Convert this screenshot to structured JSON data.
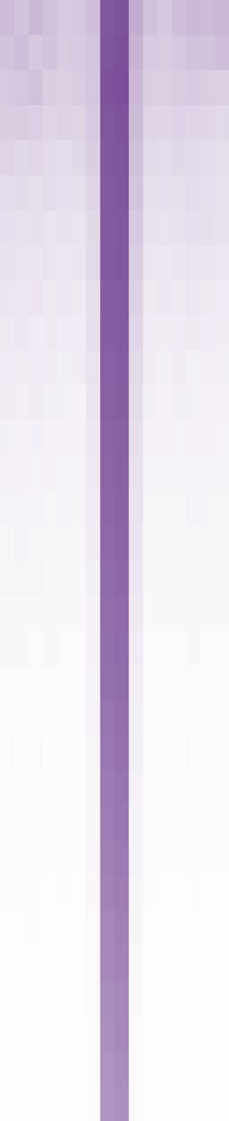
{
  "chart_data": {
    "type": "heatmap",
    "tick_labels": false,
    "color": "#6b3a8c",
    "color_range": [
      0,
      1
    ],
    "cells": [
      [
        0.34,
        0.3,
        0.36,
        0.31,
        0.27,
        0.29,
        0.33,
        0.86,
        0.88,
        0.42,
        0.31,
        0.28,
        0.33,
        0.35,
        0.34,
        0.36
      ],
      [
        0.3,
        0.33,
        0.28,
        0.3,
        0.26,
        0.27,
        0.3,
        0.87,
        0.89,
        0.38,
        0.27,
        0.26,
        0.29,
        0.31,
        0.3,
        0.33
      ],
      [
        0.27,
        0.29,
        0.31,
        0.25,
        0.24,
        0.26,
        0.29,
        0.88,
        0.9,
        0.36,
        0.25,
        0.24,
        0.26,
        0.27,
        0.25,
        0.24
      ],
      [
        0.25,
        0.26,
        0.24,
        0.22,
        0.23,
        0.22,
        0.27,
        0.86,
        0.88,
        0.34,
        0.22,
        0.21,
        0.23,
        0.22,
        0.21,
        0.2
      ],
      [
        0.22,
        0.2,
        0.21,
        0.19,
        0.18,
        0.2,
        0.25,
        0.85,
        0.87,
        0.32,
        0.19,
        0.18,
        0.2,
        0.19,
        0.18,
        0.17
      ],
      [
        0.18,
        0.19,
        0.17,
        0.18,
        0.16,
        0.17,
        0.22,
        0.84,
        0.86,
        0.3,
        0.17,
        0.16,
        0.17,
        0.18,
        0.16,
        0.15
      ],
      [
        0.16,
        0.15,
        0.16,
        0.14,
        0.15,
        0.14,
        0.2,
        0.84,
        0.85,
        0.27,
        0.15,
        0.14,
        0.15,
        0.16,
        0.17,
        0.15
      ],
      [
        0.15,
        0.14,
        0.13,
        0.14,
        0.12,
        0.13,
        0.19,
        0.83,
        0.85,
        0.25,
        0.13,
        0.12,
        0.13,
        0.14,
        0.13,
        0.12
      ],
      [
        0.13,
        0.12,
        0.13,
        0.11,
        0.12,
        0.11,
        0.17,
        0.82,
        0.84,
        0.23,
        0.11,
        0.12,
        0.11,
        0.12,
        0.11,
        0.1
      ],
      [
        0.11,
        0.12,
        0.1,
        0.11,
        0.1,
        0.1,
        0.16,
        0.82,
        0.83,
        0.21,
        0.1,
        0.09,
        0.1,
        0.11,
        0.1,
        0.09
      ],
      [
        0.1,
        0.09,
        0.1,
        0.09,
        0.08,
        0.09,
        0.14,
        0.81,
        0.82,
        0.19,
        0.09,
        0.08,
        0.09,
        0.08,
        0.09,
        0.08
      ],
      [
        0.09,
        0.08,
        0.09,
        0.08,
        0.08,
        0.07,
        0.13,
        0.8,
        0.82,
        0.18,
        0.08,
        0.07,
        0.08,
        0.08,
        0.07,
        0.07
      ],
      [
        0.08,
        0.07,
        0.08,
        0.07,
        0.07,
        0.07,
        0.12,
        0.79,
        0.81,
        0.16,
        0.07,
        0.07,
        0.06,
        0.07,
        0.07,
        0.06
      ],
      [
        0.07,
        0.07,
        0.06,
        0.07,
        0.06,
        0.06,
        0.11,
        0.78,
        0.8,
        0.15,
        0.06,
        0.06,
        0.06,
        0.06,
        0.06,
        0.06
      ],
      [
        0.06,
        0.06,
        0.06,
        0.05,
        0.06,
        0.05,
        0.1,
        0.77,
        0.79,
        0.14,
        0.05,
        0.05,
        0.05,
        0.06,
        0.05,
        0.05
      ],
      [
        0.05,
        0.06,
        0.05,
        0.05,
        0.05,
        0.05,
        0.09,
        0.76,
        0.78,
        0.13,
        0.05,
        0.05,
        0.05,
        0.05,
        0.05,
        0.04
      ],
      [
        0.05,
        0.05,
        0.05,
        0.04,
        0.04,
        0.04,
        0.08,
        0.75,
        0.77,
        0.12,
        0.04,
        0.04,
        0.04,
        0.04,
        0.04,
        0.04
      ],
      [
        0.04,
        0.04,
        0.04,
        0.04,
        0.04,
        0.04,
        0.07,
        0.74,
        0.76,
        0.11,
        0.04,
        0.04,
        0.04,
        0.04,
        0.04,
        0.04
      ],
      [
        0.04,
        0.04,
        0.03,
        0.04,
        0.03,
        0.03,
        0.07,
        0.73,
        0.75,
        0.1,
        0.03,
        0.03,
        0.03,
        0.04,
        0.03,
        0.03
      ],
      [
        0.03,
        0.03,
        0.03,
        0.03,
        0.03,
        0.03,
        0.06,
        0.72,
        0.74,
        0.09,
        0.03,
        0.03,
        0.03,
        0.03,
        0.03,
        0.03
      ],
      [
        0.03,
        0.03,
        0.03,
        0.03,
        0.03,
        0.03,
        0.06,
        0.7,
        0.73,
        0.08,
        0.03,
        0.03,
        0.03,
        0.03,
        0.03,
        0.03
      ],
      [
        0.03,
        0.02,
        0.03,
        0.02,
        0.02,
        0.02,
        0.05,
        0.69,
        0.72,
        0.08,
        0.02,
        0.02,
        0.02,
        0.03,
        0.02,
        0.02
      ],
      [
        0.02,
        0.02,
        0.02,
        0.02,
        0.02,
        0.02,
        0.05,
        0.67,
        0.7,
        0.07,
        0.02,
        0.02,
        0.02,
        0.02,
        0.02,
        0.02
      ],
      [
        0.02,
        0.02,
        0.02,
        0.02,
        0.02,
        0.02,
        0.04,
        0.66,
        0.69,
        0.06,
        0.02,
        0.02,
        0.02,
        0.02,
        0.02,
        0.02
      ],
      [
        0.02,
        0.02,
        0.02,
        0.02,
        0.02,
        0.02,
        0.04,
        0.64,
        0.67,
        0.06,
        0.02,
        0.02,
        0.02,
        0.02,
        0.02,
        0.02
      ],
      [
        0.02,
        0.02,
        0.02,
        0.01,
        0.02,
        0.01,
        0.04,
        0.63,
        0.66,
        0.05,
        0.02,
        0.01,
        0.01,
        0.02,
        0.01,
        0.01
      ],
      [
        0.01,
        0.01,
        0.02,
        0.01,
        0.01,
        0.01,
        0.03,
        0.61,
        0.64,
        0.05,
        0.01,
        0.01,
        0.01,
        0.01,
        0.01,
        0.01
      ],
      [
        0.01,
        0.01,
        0.01,
        0.01,
        0.01,
        0.01,
        0.03,
        0.6,
        0.63,
        0.04,
        0.01,
        0.01,
        0.01,
        0.01,
        0.01,
        0.01
      ],
      [
        0.01,
        0.01,
        0.01,
        0.01,
        0.01,
        0.01,
        0.03,
        0.58,
        0.61,
        0.04,
        0.01,
        0.01,
        0.01,
        0.01,
        0.01,
        0.01
      ],
      [
        0.01,
        0.01,
        0.01,
        0.01,
        0.01,
        0.01,
        0.02,
        0.57,
        0.6,
        0.03,
        0.01,
        0.01,
        0.01,
        0.01,
        0.01,
        0.01
      ],
      [
        0.01,
        0.01,
        0.01,
        0.01,
        0.01,
        0.01,
        0.02,
        0.55,
        0.58,
        0.03,
        0.01,
        0.01,
        0.01,
        0.01,
        0.01,
        0.01
      ],
      [
        0.01,
        0.01,
        0.01,
        0.01,
        0.01,
        0.01,
        0.02,
        0.54,
        0.57,
        0.03,
        0.01,
        0.01,
        0.01,
        0.01,
        0.01,
        0.01
      ]
    ]
  }
}
